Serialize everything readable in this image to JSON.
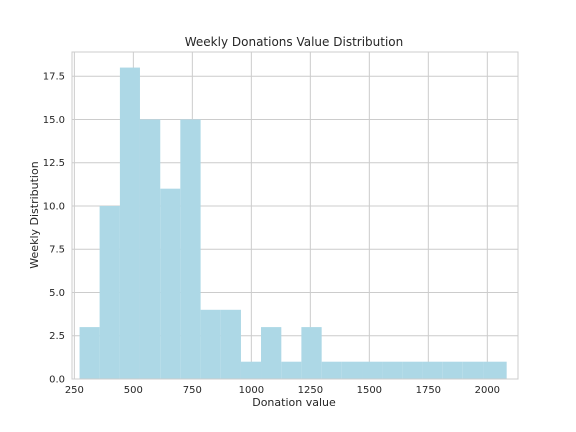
{
  "chart_data": {
    "type": "bar",
    "title": "Weekly Donations Value Distribution",
    "xlabel": "Donation value",
    "ylabel": "Weekly Distribution",
    "bin_edges": [
      272,
      357,
      443,
      528,
      614,
      699,
      785,
      870,
      956,
      1041,
      1127,
      1212,
      1298,
      1383,
      1469,
      1554,
      1640,
      1725,
      1811,
      1896,
      1982,
      2082
    ],
    "values": [
      3,
      10,
      18,
      15,
      11,
      15,
      4,
      4,
      1,
      3,
      1,
      3,
      1,
      1,
      1,
      1,
      1,
      1,
      1,
      1,
      1
    ],
    "xlim": [
      240,
      2130
    ],
    "ylim": [
      0,
      18.9
    ],
    "xticks": [
      250,
      500,
      750,
      1000,
      1250,
      1500,
      1750,
      2000
    ],
    "xtick_labels": [
      "250",
      "500",
      "750",
      "1000",
      "1250",
      "1500",
      "1750",
      "2000"
    ],
    "yticks": [
      0,
      2.5,
      5,
      7.5,
      10,
      12.5,
      15,
      17.5
    ],
    "ytick_labels": [
      "0.0",
      "2.5",
      "5.0",
      "7.5",
      "10.0",
      "12.5",
      "15.0",
      "17.5"
    ],
    "grid": true,
    "bar_color": "#add8e6",
    "grid_color": "#cccccc",
    "spine_color": "#cccccc"
  }
}
